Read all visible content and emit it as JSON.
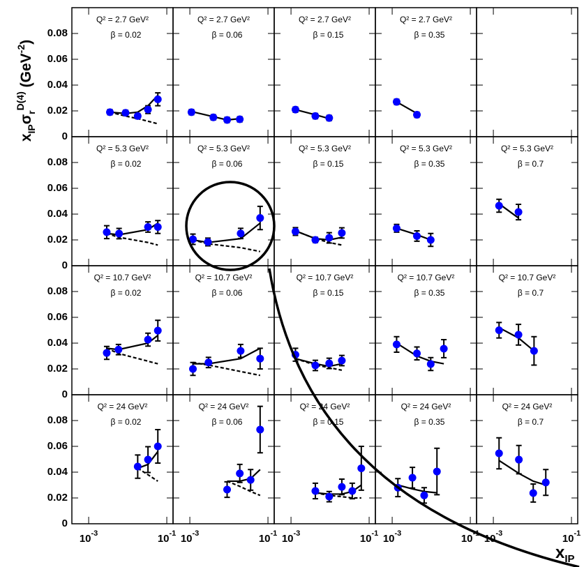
{
  "chart_data": {
    "type": "scatter",
    "xscale": "log",
    "color": "#0000ff",
    "ylabel": {
      "x": "x",
      "x_sub": "IP",
      "sigma": "σ",
      "sigma_sub": "r",
      "sigma_sup": "D(4)",
      "unit": " (GeV",
      "unit_sup": "-2",
      "close": ")"
    },
    "xlabel": {
      "x": "x",
      "sub": "IP"
    },
    "ylim": [
      0,
      0.1
    ],
    "yticks": [
      0,
      0.02,
      0.04,
      0.06,
      0.08
    ],
    "xlim": [
      0.0003715,
      0.1445
    ],
    "xticks": [
      {
        "value": 0.001,
        "label": "10",
        "exp": "-3"
      },
      {
        "value": 0.1,
        "label": "10",
        "exp": "-1"
      }
    ],
    "rows": [
      [
        {
          "q2": "Q² = 2.7 GeV²",
          "beta": "β = 0.02",
          "x": [
            0.0035,
            0.0088,
            0.018,
            0.033,
            0.059
          ],
          "values": [
            0.019,
            0.0185,
            0.016,
            0.021,
            0.029
          ],
          "errors": [
            0.002,
            0.002,
            0.002,
            0.003,
            0.005
          ],
          "fit": [
            0.019,
            0.018,
            0.019,
            0.024,
            0.032
          ],
          "fit_low": [
            0.019,
            0.016,
            0.014,
            0.012,
            0.01
          ]
        },
        {
          "q2": "Q² = 2.7 GeV²",
          "beta": "β = 0.06",
          "x": [
            0.0011,
            0.004,
            0.009,
            0.019
          ],
          "values": [
            0.019,
            0.015,
            0.013,
            0.0135
          ],
          "errors": [
            0.002,
            0.002,
            0.002,
            0.002
          ],
          "fit": [
            0.0195,
            0.0155,
            0.013,
            0.014
          ]
        },
        {
          "q2": "Q² = 2.7 GeV²",
          "beta": "β = 0.15",
          "x": [
            0.0013,
            0.0042,
            0.0095
          ],
          "values": [
            0.021,
            0.016,
            0.0145
          ],
          "errors": [
            0.002,
            0.002,
            0.002
          ],
          "fit": [
            0.021,
            0.017,
            0.014
          ]
        },
        {
          "q2": "Q² = 2.7 GeV²",
          "beta": "β = 0.35",
          "x": [
            0.0013,
            0.0043
          ],
          "values": [
            0.027,
            0.017
          ],
          "errors": [
            0.002,
            0.002
          ],
          "fit": [
            0.027,
            0.018
          ]
        },
        null
      ],
      [
        {
          "q2": "Q² = 5.3 GeV²",
          "beta": "β = 0.02",
          "x": [
            0.0029,
            0.006,
            0.033,
            0.059
          ],
          "values": [
            0.026,
            0.0249,
            0.03,
            0.03
          ],
          "errors": [
            0.005,
            0.004,
            0.004,
            0.005
          ],
          "fit": [
            0.025,
            0.024,
            0.028,
            0.033
          ],
          "fit_low": [
            0.025,
            0.022,
            0.018,
            0.016
          ]
        },
        {
          "q2": "Q² = 5.3 GeV²",
          "beta": "β = 0.06",
          "x": [
            0.0012,
            0.0029,
            0.02,
            0.063
          ],
          "values": [
            0.0205,
            0.0184,
            0.025,
            0.037
          ],
          "errors": [
            0.004,
            0.003,
            0.004,
            0.009
          ],
          "fit": [
            0.02,
            0.018,
            0.021,
            0.033
          ],
          "fit_low": [
            0.02,
            0.017,
            0.014,
            0.011
          ]
        },
        {
          "q2": "Q² = 5.3 GeV²",
          "beta": "β = 0.15",
          "x": [
            0.0013,
            0.0042,
            0.0095,
            0.02
          ],
          "values": [
            0.0265,
            0.02,
            0.0216,
            0.0254
          ],
          "errors": [
            0.003,
            0.002,
            0.004,
            0.004
          ],
          "fit": [
            0.027,
            0.021,
            0.02,
            0.022
          ],
          "fit_low": [
            0.027,
            0.021,
            0.018,
            0.016
          ]
        },
        {
          "q2": "Q² = 5.3 GeV²",
          "beta": "β = 0.35",
          "x": [
            0.0013,
            0.0043,
            0.0097
          ],
          "values": [
            0.029,
            0.023,
            0.02
          ],
          "errors": [
            0.003,
            0.004,
            0.005
          ],
          "fit": [
            0.029,
            0.024,
            0.02
          ]
        },
        {
          "q2": "Q² = 5.3 GeV²",
          "beta": "β = 0.7",
          "x": [
            0.0014,
            0.0044
          ],
          "values": [
            0.0465,
            0.0416
          ],
          "errors": [
            0.005,
            0.006
          ],
          "fit": [
            0.048,
            0.037
          ]
        }
      ],
      [
        {
          "q2": "Q² = 10.7 GeV²",
          "beta": "β = 0.02",
          "x": [
            0.0029,
            0.0058,
            0.033,
            0.059
          ],
          "values": [
            0.0324,
            0.035,
            0.0427,
            0.0497
          ],
          "errors": [
            0.005,
            0.004,
            0.005,
            0.008
          ],
          "fit": [
            0.036,
            0.035,
            0.04,
            0.046
          ],
          "fit_low": [
            0.036,
            0.032,
            0.026,
            0.024
          ]
        },
        {
          "q2": "Q² = 10.7 GeV²",
          "beta": "β = 0.06",
          "x": [
            0.0012,
            0.003,
            0.02,
            0.063
          ],
          "values": [
            0.02,
            0.025,
            0.034,
            0.028
          ],
          "errors": [
            0.005,
            0.004,
            0.005,
            0.008
          ],
          "fit": [
            0.024,
            0.024,
            0.028,
            0.036
          ],
          "fit_low": [
            0.025,
            0.023,
            0.018,
            0.015
          ]
        },
        {
          "q2": "Q² = 10.7 GeV²",
          "beta": "β = 0.15",
          "x": [
            0.0013,
            0.0042,
            0.0095,
            0.02
          ],
          "values": [
            0.031,
            0.0227,
            0.0243,
            0.0265
          ],
          "errors": [
            0.005,
            0.004,
            0.004,
            0.004
          ],
          "fit": [
            0.028,
            0.024,
            0.022,
            0.024
          ],
          "fit_low": [
            0.028,
            0.023,
            0.021,
            0.019
          ]
        },
        {
          "q2": "Q² = 10.7 GeV²",
          "beta": "β = 0.35",
          "x": [
            0.0013,
            0.0043,
            0.0097,
            0.021
          ],
          "values": [
            0.039,
            0.032,
            0.0238,
            0.0357
          ],
          "errors": [
            0.006,
            0.005,
            0.005,
            0.007
          ],
          "fit": [
            0.04,
            0.03,
            0.026,
            0.024
          ]
        },
        {
          "q2": "Q² = 10.7 GeV²",
          "beta": "β = 0.7",
          "x": [
            0.0014,
            0.0044,
            0.011
          ],
          "values": [
            0.05,
            0.0465,
            0.034
          ],
          "errors": [
            0.006,
            0.008,
            0.011
          ],
          "fit": [
            0.052,
            0.044,
            0.034
          ]
        }
      ],
      [
        {
          "q2": "Q² = 24 GeV²",
          "beta": "β = 0.02",
          "x": [
            0.018,
            0.033,
            0.059
          ],
          "values": [
            0.0443,
            0.0497,
            0.06
          ],
          "errors": [
            0.009,
            0.01,
            0.013
          ],
          "fit": [
            0.043,
            0.046,
            0.056
          ],
          "fit_low": [
            0.043,
            0.038,
            0.033
          ]
        },
        {
          "q2": "Q² = 24 GeV²",
          "beta": "β = 0.06",
          "x": [
            0.009,
            0.019,
            0.036,
            0.063
          ],
          "values": [
            0.0265,
            0.039,
            0.034,
            0.073
          ],
          "errors": [
            0.006,
            0.007,
            0.008,
            0.018
          ],
          "fit": [
            0.033,
            0.033,
            0.035,
            0.042
          ],
          "fit_low": [
            0.033,
            0.029,
            0.025,
            0.022
          ]
        },
        {
          "q2": "Q² = 24 GeV²",
          "beta": "β = 0.15",
          "x": [
            0.0042,
            0.0095,
            0.02,
            0.037,
            0.063
          ],
          "values": [
            0.0254,
            0.021,
            0.0286,
            0.0254,
            0.043
          ],
          "errors": [
            0.006,
            0.004,
            0.006,
            0.006,
            0.017
          ],
          "fit": [
            0.024,
            0.023,
            0.023,
            0.025,
            0.03
          ],
          "fit_low": [
            0.024,
            0.022,
            0.021,
            0.02,
            0.02
          ]
        },
        {
          "q2": "Q² = 24 GeV²",
          "beta": "β = 0.35",
          "x": [
            0.0014,
            0.0033,
            0.0066,
            0.014
          ],
          "values": [
            0.028,
            0.0357,
            0.022,
            0.0405
          ],
          "errors": [
            0.007,
            0.008,
            0.006,
            0.018
          ],
          "fit": [
            0.03,
            0.027,
            0.025,
            0.024
          ]
        },
        {
          "q2": "Q² = 24 GeV²",
          "beta": "β = 0.7",
          "x": [
            0.0014,
            0.0045,
            0.0105,
            0.022
          ],
          "values": [
            0.0546,
            0.0497,
            0.0238,
            0.032
          ],
          "errors": [
            0.012,
            0.011,
            0.007,
            0.01
          ],
          "fit": [
            0.049,
            0.039,
            0.033,
            0.03
          ]
        }
      ]
    ]
  }
}
